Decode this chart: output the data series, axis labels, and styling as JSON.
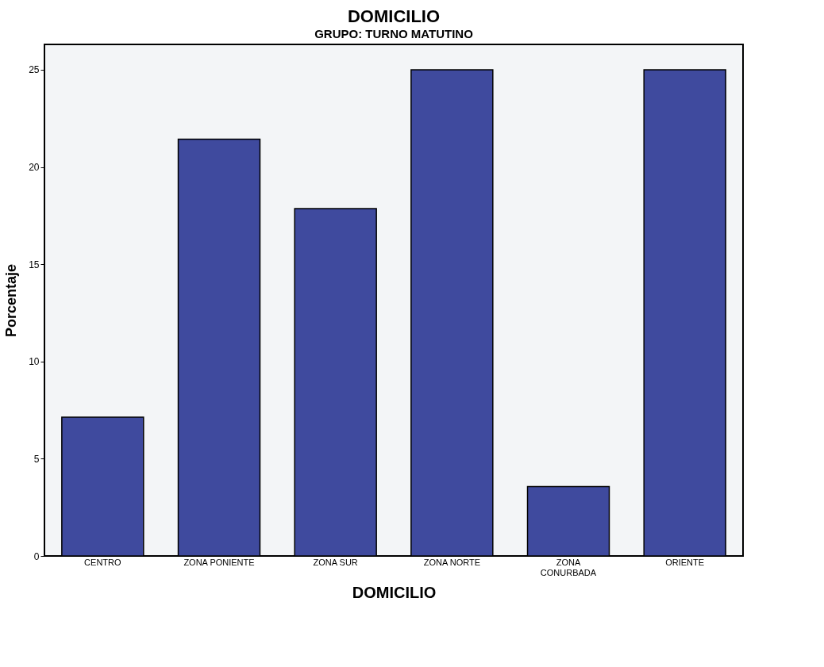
{
  "chart_data": {
    "type": "bar",
    "title": "DOMICILIO",
    "subtitle": "GRUPO: TURNO MATUTINO",
    "xlabel": "DOMICILIO",
    "ylabel": "Porcentaje",
    "categories": [
      "CENTRO",
      "ZONA PONIENTE",
      "ZONA SUR",
      "ZONA NORTE",
      "ZONA CONURBADA",
      "ORIENTE"
    ],
    "values": [
      7.14,
      21.43,
      17.86,
      25,
      3.57,
      25
    ],
    "color": "#3f4a9e",
    "ylim": [
      0,
      26.3
    ],
    "yticks": [
      0,
      5,
      10,
      15,
      20,
      25
    ],
    "grid": false
  }
}
